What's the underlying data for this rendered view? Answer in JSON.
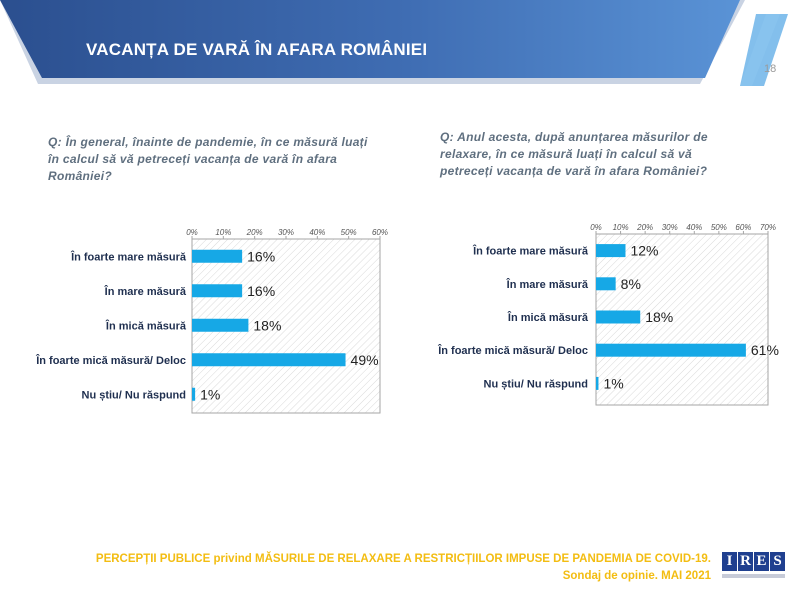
{
  "header": {
    "title": "VACANȚA DE VARĂ ÎN AFARA ROMÂNIEI",
    "page_number": "18",
    "colors": {
      "dark": "#2b4f8f",
      "light": "#4f83c8",
      "stripe": "#5aa9e6"
    }
  },
  "questions": {
    "q1": "Q: În general, înainte de pandemie, în ce măsură luați în calcul să vă petreceți vacanța de vară în afara României?",
    "q2": "Q: Anul acesta, după anunțarea măsurilor de relaxare, în ce măsură luați în calcul să vă petreceți vacanța de vară în afara României?"
  },
  "chart_data": [
    {
      "type": "bar",
      "orientation": "horizontal",
      "title": "",
      "xlabel": "",
      "ylabel": "",
      "categories": [
        "În foarte mare măsură",
        "În mare măsură",
        "În mică măsură",
        "În foarte mică măsură/ Deloc",
        "Nu știu/ Nu răspund"
      ],
      "values": [
        16,
        16,
        18,
        49,
        1
      ],
      "value_labels": [
        "16%",
        "16%",
        "18%",
        "49%",
        "1%"
      ],
      "xlim": [
        0,
        60
      ],
      "ticks": [
        0,
        10,
        20,
        30,
        40,
        50,
        60
      ],
      "tick_labels": [
        "0%",
        "10%",
        "20%",
        "30%",
        "40%",
        "50%",
        "60%"
      ],
      "bar_color": "#16a8e6",
      "grid": false
    },
    {
      "type": "bar",
      "orientation": "horizontal",
      "title": "",
      "xlabel": "",
      "ylabel": "",
      "categories": [
        "În foarte mare măsură",
        "În mare măsură",
        "În mică măsură",
        "În foarte mică măsură/ Deloc",
        "Nu știu/ Nu răspund"
      ],
      "values": [
        12,
        8,
        18,
        61,
        1
      ],
      "value_labels": [
        "12%",
        "8%",
        "18%",
        "61%",
        "1%"
      ],
      "xlim": [
        0,
        70
      ],
      "ticks": [
        0,
        10,
        20,
        30,
        40,
        50,
        60,
        70
      ],
      "tick_labels": [
        "0%",
        "10%",
        "20%",
        "30%",
        "40%",
        "50%",
        "60%",
        "70%"
      ],
      "bar_color": "#16a8e6",
      "grid": false
    }
  ],
  "footer": {
    "line1": "PERCEPȚII PUBLICE privind MĂSURILE DE RELAXARE A RESTRICȚIILOR IMPUSE  DE PANDEMIA DE COVID-19.",
    "line2": "Sondaj de opinie. MAI 2021",
    "color": "#f3bd12"
  },
  "logo": {
    "letters": [
      "I",
      "R",
      "E",
      "S"
    ]
  }
}
